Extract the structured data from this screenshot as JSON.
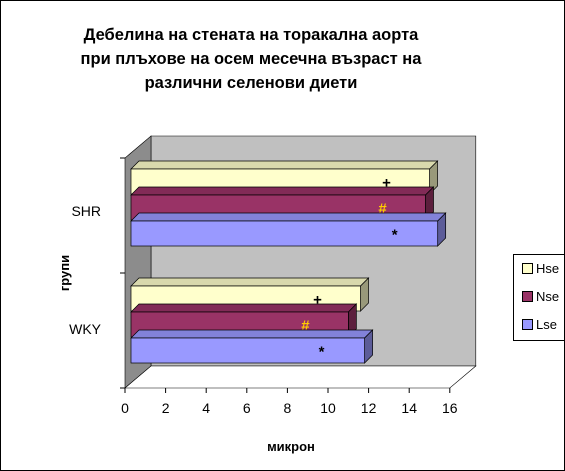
{
  "chart_data": {
    "type": "bar",
    "orientation": "horizontal",
    "style": "3d",
    "title_lines": [
      "Дебелина на стената на торакална аорта",
      "при плъхове на осем месечна възраст на",
      "различни селенови диети"
    ],
    "xlabel": "микрон",
    "ylabel": "групи",
    "categories": [
      "SHR",
      "WKY"
    ],
    "xlim": [
      0,
      16
    ],
    "xticks": [
      "0",
      "2",
      "4",
      "6",
      "8",
      "10",
      "12",
      "14",
      "16"
    ],
    "series": [
      {
        "name": "Hse",
        "color": "#FFFFCC",
        "values": [
          15.2,
          11.8
        ],
        "marker": "+",
        "marker_color": "#000000"
      },
      {
        "name": "Nse",
        "color": "#993366",
        "values": [
          15.0,
          11.2
        ],
        "marker": "#",
        "marker_color": "#FFCC00"
      },
      {
        "name": "Lse",
        "color": "#9999FF",
        "values": [
          15.6,
          12.0
        ],
        "marker": "*",
        "marker_color": "#000000"
      }
    ],
    "legend_position": "right",
    "wall_color": "#C0C0C0"
  }
}
